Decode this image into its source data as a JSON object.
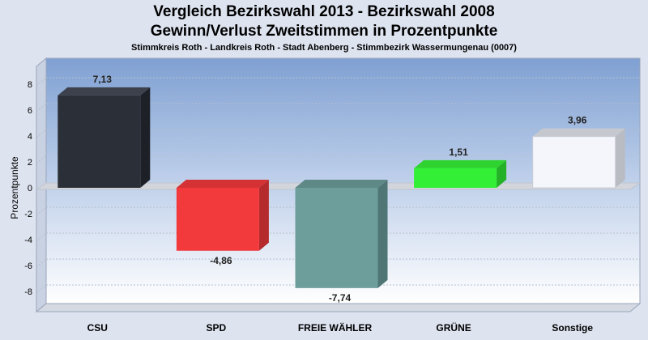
{
  "chart_data": {
    "type": "bar",
    "title": "Vergleich Bezirkswahl 2013 - Bezirkswahl 2008",
    "subtitle": "Gewinn/Verlust Zweitstimmen in Prozentpunkte",
    "subsubtitle": "Stimmkreis Roth - Landkreis Roth - Stadt Abenberg - Stimmbezirk Wassermungenau (0007)",
    "ylabel": "Prozentpunkte",
    "xlabel": "",
    "ylim": [
      -10,
      10
    ],
    "yticks": [
      -8,
      -6,
      -4,
      -2,
      0,
      2,
      4,
      6,
      8
    ],
    "categories": [
      "CSU",
      "SPD",
      "FREIE WÄHLER",
      "GRÜNE",
      "Sonstige"
    ],
    "values": [
      7.13,
      -4.86,
      -7.74,
      1.51,
      3.96
    ],
    "value_labels": [
      "7,13",
      "-4,86",
      "-7,74",
      "1,51",
      "3,96"
    ],
    "colors": [
      "#2b2f38",
      "#f23a3d",
      "#6e9e9c",
      "#33f036",
      "#f4f6fb"
    ],
    "side_colors": [
      "#1d2027",
      "#b52a2c",
      "#4f7574",
      "#24b027",
      "#b9bcc2"
    ],
    "top_colors": [
      "#3c414c",
      "#d43234",
      "#5f8987",
      "#2ed330",
      "#c5c8cf"
    ],
    "grid": true,
    "legend": "none"
  }
}
